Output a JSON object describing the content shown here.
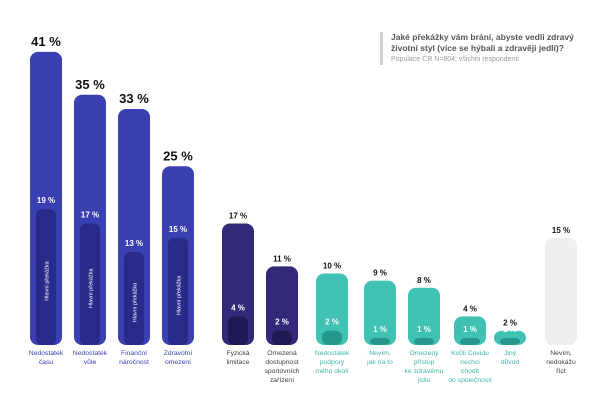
{
  "question": {
    "title": "Jaké překážky vám brání, abyste vedli zdravý životní styl (více se hýbali a zdravěji jedli)?",
    "subtitle": "Populace ČR N=804; všichni respondenti"
  },
  "chart_data": {
    "type": "bar",
    "ylim": [
      0,
      45
    ],
    "inner_label": "Hlavní překážka",
    "categories": [
      "Nedostatek času",
      "Nedostatek vůle",
      "Finanční náročnost",
      "Zdravotní omezení",
      "Fyzická limitace",
      "Omezená dostupnost sportovních zařízení",
      "Nedostatek podpory mého okolí",
      "Nevím, jak na to",
      "Omezený přístup ke zdravému jídlu",
      "Kvůli Covidu nechci chodit do společnosti",
      "Jiný důvod",
      "Nevím, nedokážu říct"
    ],
    "category_lines": [
      [
        "Nedostatek",
        "času"
      ],
      [
        "Nedostatek",
        "vůle"
      ],
      [
        "Finanční",
        "náročnost"
      ],
      [
        "Zdravotní",
        "omezení"
      ],
      [
        "Fyzická",
        "limitace"
      ],
      [
        "Omezená",
        "dostupnost",
        "sportovních",
        "zařízení"
      ],
      [
        "Nedostatek",
        "podpory",
        "mého okolí"
      ],
      [
        "Nevím,",
        "jak na to"
      ],
      [
        "Omezený",
        "přístup",
        "ke zdravému",
        "jídlu"
      ],
      [
        "Kvůli Covidu",
        "nechci",
        "chodit",
        "do společnosti"
      ],
      [
        "Jiný",
        "důvod"
      ],
      [
        "Nevím,",
        "nedokážu",
        "říct"
      ]
    ],
    "series": [
      {
        "name": "",
        "values": [
          41,
          35,
          33,
          25,
          17,
          11,
          10,
          9,
          8,
          4,
          2,
          15
        ]
      },
      {
        "name": "Hlavní překážka",
        "values": [
          19,
          17,
          13,
          15,
          4,
          2,
          2,
          1,
          1,
          1,
          1,
          null
        ]
      }
    ],
    "total_labels": [
      "41 %",
      "35 %",
      "33 %",
      "25 %",
      "17 %",
      "11 %",
      "10 %",
      "9 %",
      "8 %",
      "4 %",
      "2 %",
      "15 %"
    ],
    "main_labels": [
      "19 %",
      "17 %",
      "13 %",
      "15 %",
      "4 %",
      "2 %",
      "2 %",
      "1 %",
      "1 %",
      "1 %",
      "1 %",
      ""
    ],
    "groups": [
      "blue",
      "blue",
      "blue",
      "blue",
      "navy",
      "navy",
      "teal",
      "teal",
      "teal",
      "teal",
      "teal",
      "grey"
    ],
    "colors": {
      "blue": {
        "bar": "#3a3fb1",
        "inner": "#292b8a",
        "label": "#3a3fb1"
      },
      "navy": {
        "bar": "#322a78",
        "inner": "#1e1a54",
        "label": "#3d3d3d"
      },
      "teal": {
        "bar": "#40c2b2",
        "inner": "#26988b",
        "label": "#40b6a8"
      },
      "grey": {
        "bar": "#efefef",
        "inner": "#e0e0e0",
        "label": "#3d3d3d"
      }
    }
  }
}
